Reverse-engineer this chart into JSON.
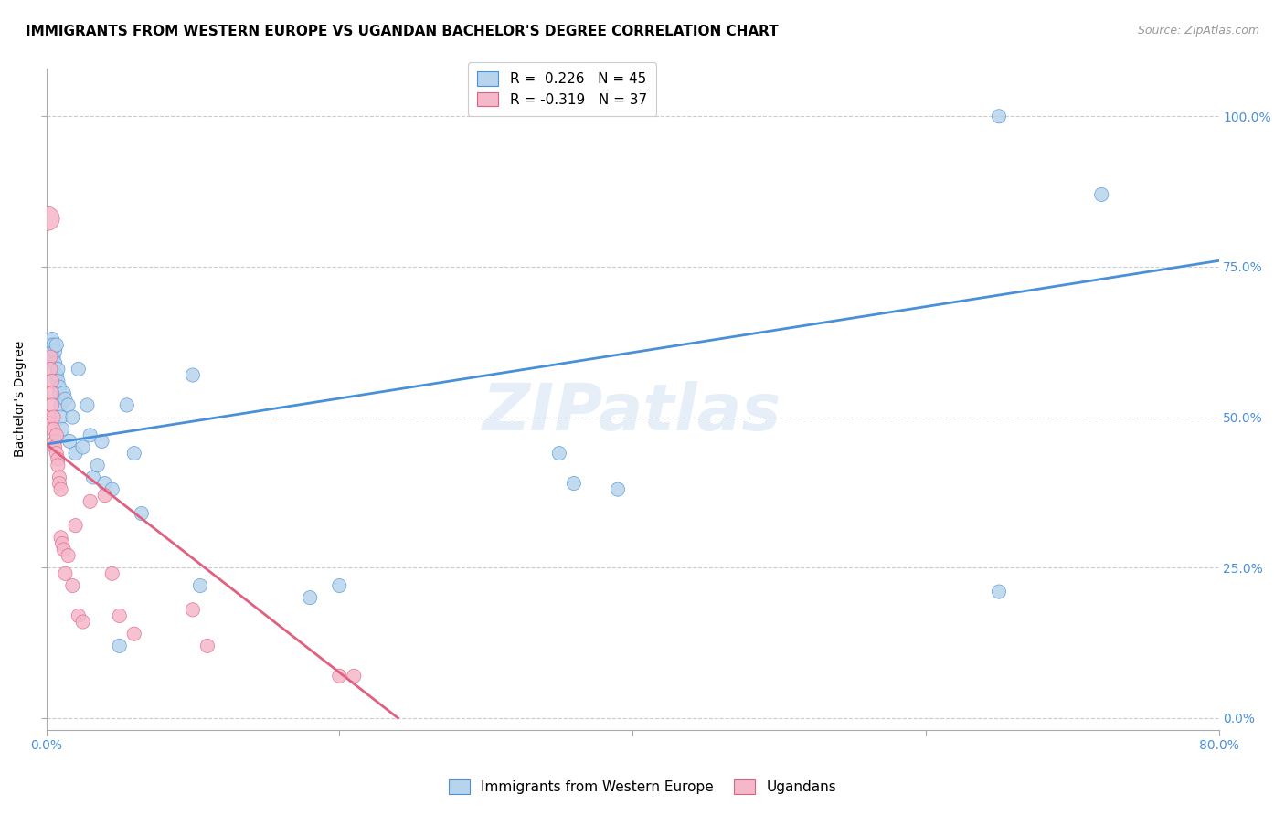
{
  "title": "IMMIGRANTS FROM WESTERN EUROPE VS UGANDAN BACHELOR'S DEGREE CORRELATION CHART",
  "source": "Source: ZipAtlas.com",
  "ylabel": "Bachelor's Degree",
  "watermark": "ZIPatlas",
  "legend1_label": "R =  0.226   N = 45",
  "legend2_label": "R = -0.319   N = 37",
  "blue_color": "#b8d4ec",
  "blue_line_color": "#4a90d9",
  "pink_color": "#f5b8cb",
  "pink_line_color": "#e06080",
  "background_color": "#ffffff",
  "grid_color": "#cccccc",
  "blue_points_x": [
    0.003,
    0.004,
    0.004,
    0.005,
    0.005,
    0.006,
    0.006,
    0.007,
    0.007,
    0.008,
    0.008,
    0.009,
    0.009,
    0.01,
    0.01,
    0.011,
    0.012,
    0.013,
    0.015,
    0.016,
    0.018,
    0.02,
    0.022,
    0.025,
    0.028,
    0.03,
    0.032,
    0.035,
    0.038,
    0.04,
    0.045,
    0.05,
    0.055,
    0.06,
    0.065,
    0.1,
    0.105,
    0.18,
    0.2,
    0.35,
    0.36,
    0.39,
    0.65,
    0.72,
    0.65
  ],
  "blue_points_y": [
    0.62,
    0.63,
    0.61,
    0.62,
    0.6,
    0.61,
    0.59,
    0.62,
    0.57,
    0.58,
    0.56,
    0.55,
    0.54,
    0.52,
    0.5,
    0.48,
    0.54,
    0.53,
    0.52,
    0.46,
    0.5,
    0.44,
    0.58,
    0.45,
    0.52,
    0.47,
    0.4,
    0.42,
    0.46,
    0.39,
    0.38,
    0.12,
    0.52,
    0.44,
    0.34,
    0.57,
    0.22,
    0.2,
    0.22,
    0.44,
    0.39,
    0.38,
    0.21,
    0.87,
    1.0
  ],
  "blue_points_sizes": [
    120,
    120,
    120,
    120,
    120,
    120,
    120,
    120,
    120,
    120,
    120,
    120,
    120,
    120,
    120,
    120,
    120,
    120,
    120,
    120,
    120,
    120,
    120,
    120,
    120,
    120,
    120,
    120,
    120,
    120,
    120,
    120,
    120,
    120,
    120,
    120,
    120,
    120,
    120,
    120,
    120,
    120,
    120,
    120,
    120
  ],
  "pink_points_x": [
    0.001,
    0.002,
    0.002,
    0.003,
    0.003,
    0.004,
    0.004,
    0.004,
    0.005,
    0.005,
    0.006,
    0.006,
    0.007,
    0.007,
    0.008,
    0.008,
    0.009,
    0.009,
    0.01,
    0.01,
    0.011,
    0.012,
    0.013,
    0.015,
    0.018,
    0.02,
    0.022,
    0.025,
    0.03,
    0.04,
    0.045,
    0.05,
    0.06,
    0.1,
    0.11,
    0.2,
    0.21
  ],
  "pink_points_y": [
    0.83,
    0.5,
    0.49,
    0.6,
    0.58,
    0.56,
    0.54,
    0.52,
    0.5,
    0.48,
    0.46,
    0.45,
    0.47,
    0.44,
    0.43,
    0.42,
    0.4,
    0.39,
    0.38,
    0.3,
    0.29,
    0.28,
    0.24,
    0.27,
    0.22,
    0.32,
    0.17,
    0.16,
    0.36,
    0.37,
    0.24,
    0.17,
    0.14,
    0.18,
    0.12,
    0.07,
    0.07
  ],
  "pink_points_sizes": [
    350,
    120,
    120,
    120,
    120,
    120,
    120,
    120,
    120,
    120,
    120,
    120,
    120,
    120,
    120,
    120,
    120,
    120,
    120,
    120,
    120,
    120,
    120,
    120,
    120,
    120,
    120,
    120,
    120,
    120,
    120,
    120,
    120,
    120,
    120,
    120,
    120
  ],
  "blue_line_x": [
    0.0,
    0.8
  ],
  "blue_line_y": [
    0.455,
    0.76
  ],
  "pink_line_x": [
    0.0,
    0.24
  ],
  "pink_line_y": [
    0.455,
    0.0
  ],
  "xlim": [
    0.0,
    0.8
  ],
  "ylim": [
    -0.02,
    1.08
  ],
  "ytick_values": [
    0.0,
    0.25,
    0.5,
    0.75,
    1.0
  ],
  "ytick_labels_right": [
    "0.0%",
    "25.0%",
    "50.0%",
    "75.0%",
    "100.0%"
  ],
  "xtick_values": [
    0.0,
    0.2,
    0.4,
    0.6,
    0.8
  ],
  "title_fontsize": 11,
  "axis_fontsize": 10,
  "tick_fontsize": 10,
  "source_fontsize": 9,
  "legend_fontsize": 11
}
